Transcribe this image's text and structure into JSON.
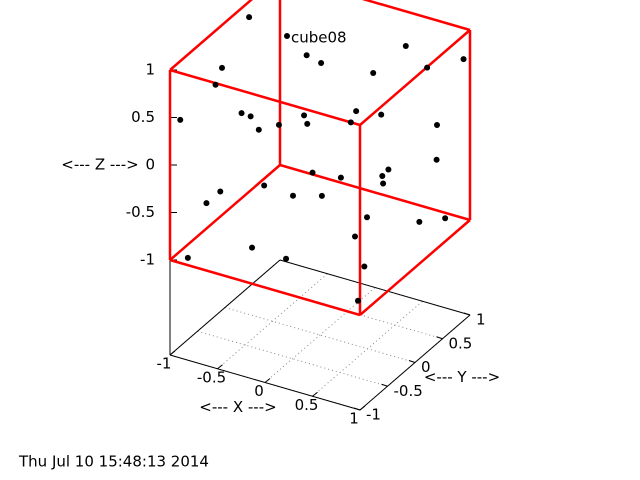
{
  "chart_data": {
    "type": "scatter3d",
    "xlabel": "<--- X --->",
    "ylabel": "<--- Y --->",
    "zlabel": "<--- Z --->",
    "timestamp": "Thu Jul 10 15:48:13 2014",
    "xlim": [
      -1,
      1
    ],
    "ylim": [
      -1,
      1
    ],
    "zlim": [
      -1,
      1
    ],
    "xticks": [
      -1,
      -0.5,
      0,
      0.5,
      1
    ],
    "yticks": [
      -1,
      -0.5,
      0,
      0.5,
      1
    ],
    "zticks": [
      -1,
      -0.5,
      0,
      0.5,
      1
    ],
    "grid": true,
    "box_color": "#ff0000",
    "series": [
      {
        "name": "cube08",
        "color": "#000000",
        "x": [
          -0.92,
          -0.43,
          -0.22,
          0.44,
          0.99,
          0.78,
          0.56,
          -0.8,
          -0.81,
          -0.95,
          -0.71,
          -0.73,
          -0.76,
          -0.49,
          -0.11,
          -0.25,
          0.67,
          0.73,
          0.76,
          1,
          0.88,
          0.72,
          0.54,
          0.78,
          -0.31,
          0.22,
          -0.53,
          -0.76,
          -0.79,
          -0.4,
          0.02,
          0.9,
          0.93,
          0.97,
          0.6,
          -0.31,
          -0.87,
          -0.01,
          0.93,
          0.95
        ],
        "y": [
          0.3,
          0.5,
          0.4,
          0.8,
          0.9,
          0.6,
          0,
          -0.4,
          -0.5,
          -0.9,
          -0.2,
          0,
          0.2,
          0.1,
          -0.1,
          0.2,
          -0.5,
          -0.7,
          -0.2,
          0.4,
          0.6,
          0,
          0.2,
          -0.2,
          0.4,
          0,
          -0.1,
          -0.5,
          -0.7,
          0.2,
          0,
          -0.7,
          0.2,
          0.6,
          -0.4,
          -0.7,
          -0.9,
          -0.6,
          -0.8,
          -0.95
        ],
        "z": [
          0.93,
          0.57,
          0.6,
          0.77,
          0.74,
          0.74,
          0.92,
          0.78,
          0.65,
          0.44,
          0.23,
          0.09,
          -0.16,
          0.02,
          0.33,
          0.05,
          0.8,
          0.8,
          0.64,
          0.3,
          -0.2,
          -0.05,
          -0.27,
          -0.08,
          -0.58,
          -0.28,
          -0.53,
          -0.46,
          -0.49,
          -0.75,
          -0.53,
          -0.15,
          -0.64,
          -0.79,
          -0.59,
          -0.82,
          -0.99,
          -0.9,
          -0.61,
          -0.89
        ]
      }
    ]
  }
}
